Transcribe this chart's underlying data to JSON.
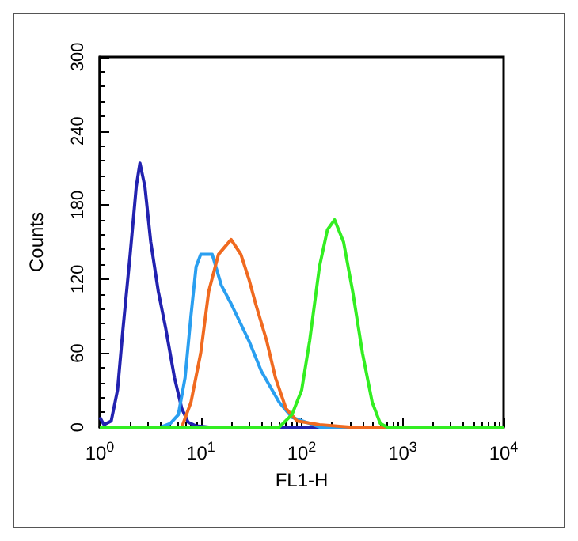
{
  "chart_data": {
    "type": "line",
    "xlabel": "FL1-H",
    "ylabel": "Counts",
    "log": "x",
    "xlim": [
      1,
      10000
    ],
    "ylim": [
      0,
      300
    ],
    "xticks": [
      {
        "value": 1,
        "label": "10$^{0}$"
      },
      {
        "value": 10,
        "label": "10$^{1}$"
      },
      {
        "value": 100,
        "label": "10$^{2}$"
      },
      {
        "value": 1000,
        "label": "10$^{3}$"
      },
      {
        "value": 10000,
        "label": "10$^{4}$"
      }
    ],
    "yticks": [
      0,
      60,
      120,
      180,
      240,
      300
    ],
    "grid": false,
    "marker": "none",
    "line_style": "solid",
    "series": [
      {
        "color": "#2222b0",
        "x": [
          1,
          1.1,
          1.3,
          1.5,
          1.7,
          2.0,
          2.3,
          2.5,
          2.8,
          3.2,
          3.8,
          4.5,
          5.5,
          6.5,
          7.5,
          9,
          12,
          100,
          10000
        ],
        "values": [
          8,
          2,
          5,
          30,
          80,
          140,
          195,
          214,
          195,
          150,
          110,
          80,
          40,
          15,
          4,
          1,
          0,
          0,
          0
        ]
      },
      {
        "color": "#2a9ff0",
        "x": [
          1,
          4,
          5,
          6,
          7,
          8,
          9,
          10,
          13,
          16,
          20,
          30,
          40,
          60,
          80,
          120,
          150,
          10000
        ],
        "values": [
          0,
          0,
          3,
          10,
          40,
          90,
          130,
          140,
          140,
          115,
          100,
          70,
          45,
          20,
          8,
          3,
          0,
          0
        ]
      },
      {
        "color": "#f06a20",
        "x": [
          1,
          6.5,
          8,
          10,
          12,
          15,
          20,
          25,
          30,
          35,
          45,
          55,
          70,
          90,
          150,
          300,
          10000
        ],
        "values": [
          0,
          0,
          20,
          60,
          110,
          140,
          152,
          140,
          120,
          100,
          70,
          40,
          15,
          5,
          2,
          0,
          0
        ]
      },
      {
        "color": "#33ee22",
        "x": [
          1,
          60,
          80,
          100,
          120,
          150,
          180,
          212,
          260,
          320,
          400,
          500,
          600,
          700,
          10000
        ],
        "values": [
          0,
          0,
          10,
          30,
          70,
          130,
          160,
          168,
          150,
          110,
          60,
          20,
          3,
          0,
          0
        ]
      }
    ]
  }
}
